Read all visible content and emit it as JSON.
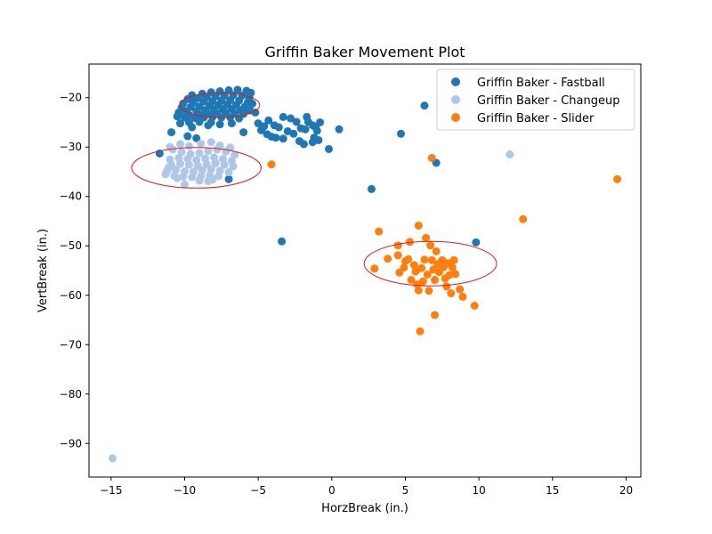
{
  "chart_data": {
    "type": "scatter",
    "title": "Griffin Baker Movement Plot",
    "xlabel": "HorzBreak (in.)",
    "ylabel": "VertBreak (in.)",
    "xlim": [
      -16.5,
      21.0
    ],
    "ylim": [
      -96.8,
      -13.2
    ],
    "x_ticks": [
      -15,
      -10,
      -5,
      0,
      5,
      10,
      15,
      20
    ],
    "x_tick_labels": [
      "−15",
      "−10",
      "−5",
      "0",
      "5",
      "10",
      "15",
      "20"
    ],
    "y_ticks": [
      -20,
      -30,
      -40,
      -50,
      -60,
      -70,
      -80,
      -90
    ],
    "y_tick_labels": [
      "−20",
      "−30",
      "−40",
      "−50",
      "−60",
      "−70",
      "−80",
      "−90"
    ],
    "grid": false,
    "legend_position": "upper-right",
    "series": [
      {
        "name": "Griffin Baker - Fastball",
        "color": "#1f77b4",
        "points": [
          [
            -9.5,
            -19.5
          ],
          [
            -8.8,
            -19.2
          ],
          [
            -8.2,
            -18.9
          ],
          [
            -7.6,
            -18.7
          ],
          [
            -7.0,
            -18.5
          ],
          [
            -6.4,
            -18.4
          ],
          [
            -5.8,
            -18.6
          ],
          [
            -5.5,
            -19.0
          ],
          [
            -9.8,
            -20.3
          ],
          [
            -9.1,
            -20.1
          ],
          [
            -8.5,
            -19.9
          ],
          [
            -7.9,
            -19.7
          ],
          [
            -7.3,
            -19.6
          ],
          [
            -6.7,
            -19.5
          ],
          [
            -6.1,
            -19.6
          ],
          [
            -5.6,
            -20.0
          ],
          [
            -10.1,
            -21.2
          ],
          [
            -9.4,
            -21.0
          ],
          [
            -8.7,
            -20.8
          ],
          [
            -8.1,
            -20.7
          ],
          [
            -7.5,
            -20.6
          ],
          [
            -6.9,
            -20.5
          ],
          [
            -6.3,
            -20.6
          ],
          [
            -5.7,
            -20.9
          ],
          [
            -10.2,
            -22.0
          ],
          [
            -9.6,
            -21.9
          ],
          [
            -9.0,
            -21.8
          ],
          [
            -8.3,
            -21.6
          ],
          [
            -7.7,
            -21.5
          ],
          [
            -7.1,
            -21.4
          ],
          [
            -6.5,
            -21.5
          ],
          [
            -5.9,
            -21.8
          ],
          [
            -9.9,
            -22.8
          ],
          [
            -9.2,
            -22.7
          ],
          [
            -8.6,
            -22.5
          ],
          [
            -8.0,
            -22.4
          ],
          [
            -7.4,
            -22.3
          ],
          [
            -6.8,
            -22.3
          ],
          [
            -6.2,
            -22.5
          ],
          [
            -5.6,
            -22.6
          ],
          [
            -10.4,
            -23.0
          ],
          [
            -9.7,
            -23.5
          ],
          [
            -9.0,
            -23.4
          ],
          [
            -8.4,
            -23.3
          ],
          [
            -7.8,
            -23.2
          ],
          [
            -7.2,
            -23.1
          ],
          [
            -6.6,
            -23.2
          ],
          [
            -6.0,
            -23.3
          ],
          [
            -10.0,
            -24.0
          ],
          [
            -9.3,
            -24.1
          ],
          [
            -8.7,
            -24.0
          ],
          [
            -8.1,
            -23.9
          ],
          [
            -7.5,
            -24.0
          ],
          [
            -6.9,
            -24.0
          ],
          [
            -6.3,
            -24.2
          ],
          [
            -9.7,
            -25.0
          ],
          [
            -9.0,
            -24.9
          ],
          [
            -8.2,
            -25.0
          ],
          [
            -7.6,
            -25.4
          ],
          [
            -9.5,
            -26.0
          ],
          [
            -8.4,
            -25.6
          ],
          [
            -10.9,
            -27.0
          ],
          [
            -9.8,
            -27.8
          ],
          [
            -9.2,
            -28.2
          ],
          [
            -10.5,
            -23.8
          ],
          [
            -10.3,
            -25.2
          ],
          [
            -5.2,
            -23.0
          ],
          [
            -5.0,
            -25.2
          ],
          [
            -4.6,
            -25.8
          ],
          [
            -4.3,
            -24.6
          ],
          [
            -3.9,
            -25.6
          ],
          [
            -3.6,
            -26.0
          ],
          [
            -4.8,
            -26.6
          ],
          [
            -4.4,
            -27.4
          ],
          [
            -4.1,
            -27.9
          ],
          [
            -3.8,
            -28.1
          ],
          [
            -3.3,
            -23.9
          ],
          [
            -2.8,
            -24.2
          ],
          [
            -2.4,
            -24.9
          ],
          [
            -2.1,
            -26.2
          ],
          [
            -3.0,
            -26.8
          ],
          [
            -2.6,
            -27.3
          ],
          [
            -3.3,
            -28.3
          ],
          [
            -2.2,
            -28.8
          ],
          [
            -1.9,
            -29.4
          ],
          [
            -1.7,
            -23.9
          ],
          [
            -1.6,
            -24.9
          ],
          [
            -1.3,
            -25.6
          ],
          [
            -1.1,
            -26.0
          ],
          [
            -1.0,
            -26.7
          ],
          [
            -1.2,
            -28.1
          ],
          [
            -0.9,
            -28.6
          ],
          [
            -1.3,
            -29.0
          ],
          [
            -0.8,
            -25.0
          ],
          [
            -1.8,
            -26.4
          ],
          [
            -5.6,
            -22.0
          ],
          [
            -6.8,
            -25.2
          ],
          [
            -5.4,
            -21.2
          ],
          [
            -6.0,
            -27.0
          ],
          [
            -11.7,
            -31.3
          ],
          [
            -7.0,
            -36.5
          ],
          [
            -3.4,
            -49.1
          ],
          [
            -0.2,
            -30.4
          ],
          [
            0.5,
            -26.4
          ],
          [
            2.7,
            -38.5
          ],
          [
            4.7,
            -27.3
          ],
          [
            6.3,
            -21.6
          ],
          [
            7.1,
            -33.2
          ],
          [
            9.8,
            -49.3
          ]
        ]
      },
      {
        "name": "Griffin Baker - Changeup",
        "color": "#aec7e8",
        "points": [
          [
            -10.8,
            -30.5
          ],
          [
            -10.2,
            -31.0
          ],
          [
            -9.6,
            -31.4
          ],
          [
            -9.0,
            -31.2
          ],
          [
            -8.4,
            -30.8
          ],
          [
            -7.8,
            -30.5
          ],
          [
            -7.2,
            -30.9
          ],
          [
            -6.6,
            -31.6
          ],
          [
            -11.0,
            -32.5
          ],
          [
            -10.4,
            -32.2
          ],
          [
            -9.8,
            -32.4
          ],
          [
            -9.2,
            -32.6
          ],
          [
            -8.6,
            -32.3
          ],
          [
            -8.0,
            -32.1
          ],
          [
            -7.4,
            -32.4
          ],
          [
            -6.8,
            -32.8
          ],
          [
            -10.9,
            -33.6
          ],
          [
            -10.3,
            -33.4
          ],
          [
            -9.7,
            -33.6
          ],
          [
            -9.1,
            -33.8
          ],
          [
            -8.5,
            -33.5
          ],
          [
            -7.9,
            -33.3
          ],
          [
            -7.3,
            -33.6
          ],
          [
            -6.7,
            -33.9
          ],
          [
            -11.2,
            -34.8
          ],
          [
            -10.6,
            -34.6
          ],
          [
            -10.0,
            -34.9
          ],
          [
            -9.4,
            -35.0
          ],
          [
            -8.8,
            -34.7
          ],
          [
            -8.2,
            -34.5
          ],
          [
            -7.6,
            -34.8
          ],
          [
            -7.0,
            -35.1
          ],
          [
            -11.3,
            -35.5
          ],
          [
            -10.7,
            -35.8
          ],
          [
            -10.1,
            -36.0
          ],
          [
            -9.5,
            -36.1
          ],
          [
            -8.9,
            -35.9
          ],
          [
            -8.3,
            -35.7
          ],
          [
            -7.7,
            -35.9
          ],
          [
            -11.0,
            -30.0
          ],
          [
            -10.3,
            -29.4
          ],
          [
            -9.7,
            -29.8
          ],
          [
            -8.9,
            -29.3
          ],
          [
            -8.2,
            -29.0
          ],
          [
            -7.6,
            -29.7
          ],
          [
            -6.9,
            -30.1
          ],
          [
            -10.0,
            -37.6
          ],
          [
            -9.0,
            -36.8
          ],
          [
            -8.4,
            -36.9
          ],
          [
            -8.1,
            -36.6
          ],
          [
            -7.9,
            -33.2
          ],
          [
            -10.5,
            -36.3
          ],
          [
            -11.1,
            -34.2
          ],
          [
            -14.9,
            -93.0
          ],
          [
            12.1,
            -31.5
          ]
        ]
      },
      {
        "name": "Griffin Baker - Slider",
        "color": "#ff7f0e",
        "points": [
          [
            -4.1,
            -33.5
          ],
          [
            3.2,
            -47.1
          ],
          [
            2.9,
            -54.6
          ],
          [
            3.8,
            -52.6
          ],
          [
            4.5,
            -51.9
          ],
          [
            4.5,
            -49.9
          ],
          [
            4.6,
            -55.4
          ],
          [
            4.9,
            -54.4
          ],
          [
            5.2,
            -52.7
          ],
          [
            5.3,
            -49.2
          ],
          [
            5.4,
            -56.9
          ],
          [
            5.6,
            -53.9
          ],
          [
            5.7,
            -55.2
          ],
          [
            5.8,
            -57.8
          ],
          [
            5.9,
            -45.9
          ],
          [
            5.9,
            -59.0
          ],
          [
            6.1,
            -54.5
          ],
          [
            6.3,
            -52.8
          ],
          [
            6.4,
            -48.4
          ],
          [
            6.5,
            -55.8
          ],
          [
            6.6,
            -59.1
          ],
          [
            6.7,
            -49.9
          ],
          [
            6.8,
            -52.9
          ],
          [
            6.9,
            -54.8
          ],
          [
            7.0,
            -56.9
          ],
          [
            7.0,
            -64.0
          ],
          [
            7.1,
            -51.1
          ],
          [
            7.2,
            -53.7
          ],
          [
            7.3,
            -55.3
          ],
          [
            7.5,
            -52.9
          ],
          [
            7.6,
            -54.3
          ],
          [
            7.7,
            -56.6
          ],
          [
            7.8,
            -58.2
          ],
          [
            7.9,
            -53.5
          ],
          [
            8.0,
            -55.9
          ],
          [
            8.1,
            -59.6
          ],
          [
            8.2,
            -54.4
          ],
          [
            8.3,
            -52.9
          ],
          [
            8.4,
            -55.7
          ],
          [
            8.7,
            -58.8
          ],
          [
            8.9,
            -60.3
          ],
          [
            9.7,
            -62.1
          ],
          [
            6.0,
            -67.3
          ],
          [
            6.8,
            -32.2
          ],
          [
            13.0,
            -44.6
          ],
          [
            19.4,
            -36.5
          ],
          [
            5.0,
            -53.1
          ],
          [
            6.2,
            -57.2
          ]
        ]
      }
    ],
    "ellipses": [
      {
        "color": "#e31a1c",
        "cx": -9.2,
        "cy": -34.2,
        "rx": 4.4,
        "ry": 4.1
      },
      {
        "color": "#e31a1c",
        "cx": -7.6,
        "cy": -21.5,
        "rx": 2.7,
        "ry": 2.5
      },
      {
        "color": "#e31a1c",
        "cx": 6.7,
        "cy": -53.6,
        "rx": 4.5,
        "ry": 4.5
      }
    ]
  }
}
